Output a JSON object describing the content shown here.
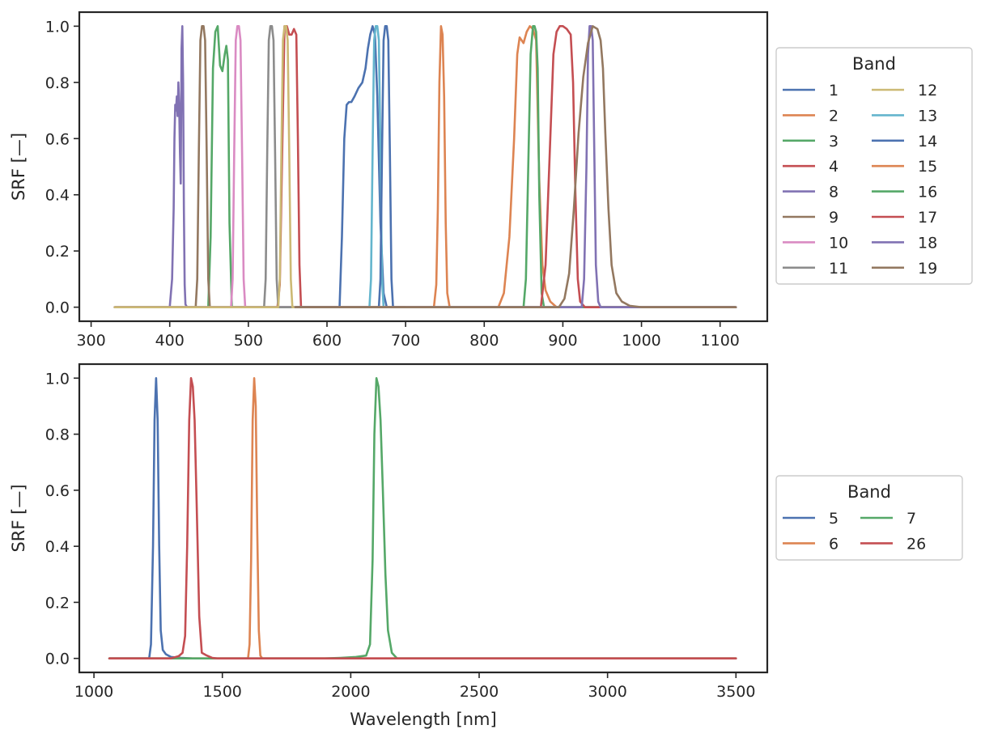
{
  "chart_data": [
    {
      "type": "line",
      "title": "",
      "xlabel": "",
      "ylabel": "SRF [—]",
      "xlim": [
        285,
        1160
      ],
      "ylim": [
        -0.05,
        1.05
      ],
      "xticks": [
        300,
        400,
        500,
        600,
        700,
        800,
        900,
        1000,
        1100
      ],
      "yticks": [
        0.0,
        0.2,
        0.4,
        0.6,
        0.8,
        1.0
      ],
      "xtick_labels": [
        "300",
        "400",
        "500",
        "600",
        "700",
        "800",
        "900",
        "1000",
        "1100"
      ],
      "ytick_labels": [
        "0.0",
        "0.2",
        "0.4",
        "0.6",
        "0.8",
        "1.0"
      ],
      "grid": false,
      "legend": {
        "title": "Band",
        "placement": "outside right",
        "columns": 2
      },
      "series": [
        {
          "name": "1",
          "color": "#4c72b0",
          "range": [
            350,
            1120
          ],
          "x": [
            616,
            619,
            622,
            625,
            628,
            631,
            635,
            640,
            645,
            649,
            652,
            655,
            658,
            661,
            664,
            668,
            672,
            676
          ],
          "y": [
            0.0,
            0.25,
            0.6,
            0.72,
            0.73,
            0.73,
            0.75,
            0.78,
            0.8,
            0.85,
            0.92,
            0.97,
            1.0,
            0.97,
            0.75,
            0.3,
            0.05,
            0.0
          ]
        },
        {
          "name": "2",
          "color": "#dd8452",
          "range": [
            560,
            1120
          ],
          "x": [
            736,
            739,
            741,
            743,
            745,
            747,
            749,
            751,
            753,
            756
          ],
          "y": [
            0.0,
            0.08,
            0.35,
            0.8,
            1.0,
            0.97,
            0.75,
            0.3,
            0.05,
            0.0
          ]
        },
        {
          "name": "3",
          "color": "#55a868",
          "range": [
            330,
            600
          ],
          "x": [
            449,
            452,
            455,
            458,
            461,
            464,
            467,
            470,
            472,
            474,
            476,
            479
          ],
          "y": [
            0.0,
            0.25,
            0.85,
            0.98,
            1.0,
            0.86,
            0.84,
            0.9,
            0.93,
            0.88,
            0.3,
            0.0
          ]
        },
        {
          "name": "4",
          "color": "#c44e52",
          "range": [
            330,
            700
          ],
          "x": [
            537,
            540,
            543,
            546,
            549,
            552,
            555,
            558,
            561,
            563,
            565,
            567
          ],
          "y": [
            0.0,
            0.08,
            0.55,
            1.0,
            1.0,
            0.97,
            0.97,
            0.99,
            0.97,
            0.6,
            0.15,
            0.0
          ]
        },
        {
          "name": "8",
          "color": "#8172b3",
          "range": [
            330,
            600
          ],
          "x": [
            400,
            403,
            405,
            406,
            407,
            408,
            409,
            410,
            411,
            412,
            413,
            414,
            415,
            416,
            417,
            418,
            419,
            420,
            422
          ],
          "y": [
            0.0,
            0.1,
            0.35,
            0.6,
            0.72,
            0.7,
            0.75,
            0.68,
            0.8,
            0.72,
            0.55,
            0.44,
            0.92,
            1.0,
            0.8,
            0.35,
            0.08,
            0.01,
            0.0
          ]
        },
        {
          "name": "9",
          "color": "#937860",
          "range": [
            330,
            600
          ],
          "x": [
            433,
            435,
            437,
            439,
            441,
            443,
            445,
            447,
            449,
            451
          ],
          "y": [
            0.0,
            0.1,
            0.55,
            0.95,
            1.0,
            1.0,
            0.95,
            0.55,
            0.1,
            0.0
          ]
        },
        {
          "name": "10",
          "color": "#da8bc3",
          "range": [
            330,
            600
          ],
          "x": [
            478,
            480,
            482,
            484,
            486,
            488,
            490,
            492,
            494,
            496
          ],
          "y": [
            0.0,
            0.1,
            0.55,
            0.95,
            1.0,
            1.0,
            0.95,
            0.55,
            0.1,
            0.0
          ]
        },
        {
          "name": "11",
          "color": "#8c8c8c",
          "range": [
            330,
            700
          ],
          "x": [
            520,
            522,
            524,
            526,
            528,
            530,
            532,
            534,
            536,
            538
          ],
          "y": [
            0.0,
            0.1,
            0.55,
            0.95,
            1.0,
            1.0,
            0.95,
            0.55,
            0.1,
            0.0
          ]
        },
        {
          "name": "12",
          "color": "#ccb974",
          "range": [
            330,
            700
          ],
          "x": [
            538,
            540,
            542,
            544,
            546,
            548,
            550,
            552,
            554,
            556
          ],
          "y": [
            0.0,
            0.1,
            0.55,
            0.95,
            1.0,
            1.0,
            0.95,
            0.55,
            0.1,
            0.0
          ]
        },
        {
          "name": "13",
          "color": "#64b5cd",
          "range": [
            560,
            1120
          ],
          "x": [
            654,
            656,
            658,
            660,
            662,
            664,
            666,
            668,
            670,
            672
          ],
          "y": [
            0.0,
            0.1,
            0.55,
            0.95,
            1.0,
            1.0,
            0.95,
            0.55,
            0.1,
            0.0
          ]
        },
        {
          "name": "14",
          "color": "#4c72b0",
          "range": [
            560,
            1120
          ],
          "x": [
            666,
            668,
            670,
            672,
            674,
            676,
            678,
            680,
            682,
            684
          ],
          "y": [
            0.0,
            0.1,
            0.55,
            0.95,
            1.0,
            1.0,
            0.95,
            0.55,
            0.1,
            0.0
          ]
        },
        {
          "name": "15",
          "color": "#dd8452",
          "range": [
            560,
            1120
          ],
          "x": [
            818,
            825,
            832,
            838,
            842,
            845,
            850,
            854,
            858,
            862,
            866,
            870,
            874,
            878,
            884,
            892
          ],
          "y": [
            0.0,
            0.05,
            0.25,
            0.6,
            0.9,
            0.96,
            0.94,
            0.98,
            1.0,
            0.99,
            0.95,
            0.45,
            0.15,
            0.06,
            0.02,
            0.0
          ]
        },
        {
          "name": "16",
          "color": "#55a868",
          "range": [
            560,
            1120
          ],
          "x": [
            850,
            853,
            856,
            859,
            862,
            864,
            866,
            868,
            870,
            873,
            876
          ],
          "y": [
            0.0,
            0.1,
            0.5,
            0.9,
            1.0,
            1.0,
            0.98,
            0.85,
            0.4,
            0.05,
            0.0
          ]
        },
        {
          "name": "17",
          "color": "#c44e52",
          "range": [
            560,
            1120
          ],
          "x": [
            872,
            878,
            884,
            888,
            892,
            896,
            900,
            905,
            910,
            913,
            916,
            919,
            922,
            928
          ],
          "y": [
            0.0,
            0.15,
            0.6,
            0.9,
            0.98,
            1.0,
            1.0,
            0.99,
            0.97,
            0.8,
            0.4,
            0.1,
            0.02,
            0.0
          ]
        },
        {
          "name": "18",
          "color": "#8172b3",
          "range": [
            560,
            1120
          ],
          "x": [
            924,
            927,
            930,
            932,
            934,
            936,
            938,
            940,
            942,
            945,
            948
          ],
          "y": [
            0.0,
            0.1,
            0.5,
            0.9,
            1.0,
            1.0,
            0.95,
            0.55,
            0.15,
            0.02,
            0.0
          ]
        },
        {
          "name": "19",
          "color": "#937860",
          "range": [
            560,
            1120
          ],
          "x": [
            895,
            902,
            908,
            914,
            920,
            926,
            932,
            938,
            944,
            948,
            951,
            954,
            958,
            962,
            968,
            975,
            985,
            1000
          ],
          "y": [
            0.0,
            0.03,
            0.12,
            0.35,
            0.62,
            0.82,
            0.94,
            1.0,
            0.99,
            0.95,
            0.85,
            0.62,
            0.35,
            0.15,
            0.05,
            0.02,
            0.005,
            0.0
          ]
        }
      ]
    },
    {
      "type": "line",
      "title": "",
      "xlabel": "Wavelength [nm]",
      "ylabel": "SRF [—]",
      "xlim": [
        943,
        3622
      ],
      "ylim": [
        -0.05,
        1.05
      ],
      "xticks": [
        1000,
        1500,
        2000,
        2500,
        3000,
        3500
      ],
      "yticks": [
        0.0,
        0.2,
        0.4,
        0.6,
        0.8,
        1.0
      ],
      "xtick_labels": [
        "1000",
        "1500",
        "2000",
        "2500",
        "3000",
        "3500"
      ],
      "ytick_labels": [
        "0.0",
        "0.2",
        "0.4",
        "0.6",
        "0.8",
        "1.0"
      ],
      "grid": false,
      "legend": {
        "title": "Band",
        "placement": "outside right",
        "columns": 2
      },
      "series": [
        {
          "name": "5",
          "color": "#4c72b0",
          "range": [
            1060,
            1380
          ],
          "x": [
            1215,
            1222,
            1230,
            1236,
            1242,
            1248,
            1254,
            1260,
            1268,
            1280,
            1300,
            1340,
            1380
          ],
          "y": [
            0.0,
            0.05,
            0.4,
            0.85,
            1.0,
            0.85,
            0.4,
            0.1,
            0.03,
            0.015,
            0.005,
            0.002,
            0.0
          ]
        },
        {
          "name": "6",
          "color": "#dd8452",
          "range": [
            1060,
            3500
          ],
          "x": [
            1600,
            1606,
            1612,
            1618,
            1624,
            1630,
            1636,
            1642,
            1648,
            1655
          ],
          "y": [
            0.0,
            0.05,
            0.35,
            0.85,
            1.0,
            0.9,
            0.45,
            0.1,
            0.01,
            0.0
          ]
        },
        {
          "name": "7",
          "color": "#55a868",
          "range": [
            1060,
            3500
          ],
          "x": [
            1900,
            1960,
            2020,
            2060,
            2075,
            2085,
            2092,
            2100,
            2108,
            2116,
            2125,
            2135,
            2145,
            2160,
            2180
          ],
          "y": [
            0.0,
            0.002,
            0.005,
            0.01,
            0.05,
            0.35,
            0.8,
            1.0,
            0.97,
            0.85,
            0.6,
            0.3,
            0.1,
            0.02,
            0.0
          ]
        },
        {
          "name": "26",
          "color": "#c44e52",
          "range": [
            1060,
            3500
          ],
          "x": [
            1300,
            1330,
            1345,
            1355,
            1363,
            1371,
            1378,
            1385,
            1392,
            1400,
            1410,
            1420,
            1440,
            1460,
            1480,
            1500
          ],
          "y": [
            0.0,
            0.008,
            0.02,
            0.08,
            0.4,
            0.85,
            1.0,
            0.97,
            0.85,
            0.55,
            0.15,
            0.02,
            0.01,
            0.002,
            0.0,
            0.0
          ]
        }
      ]
    }
  ]
}
